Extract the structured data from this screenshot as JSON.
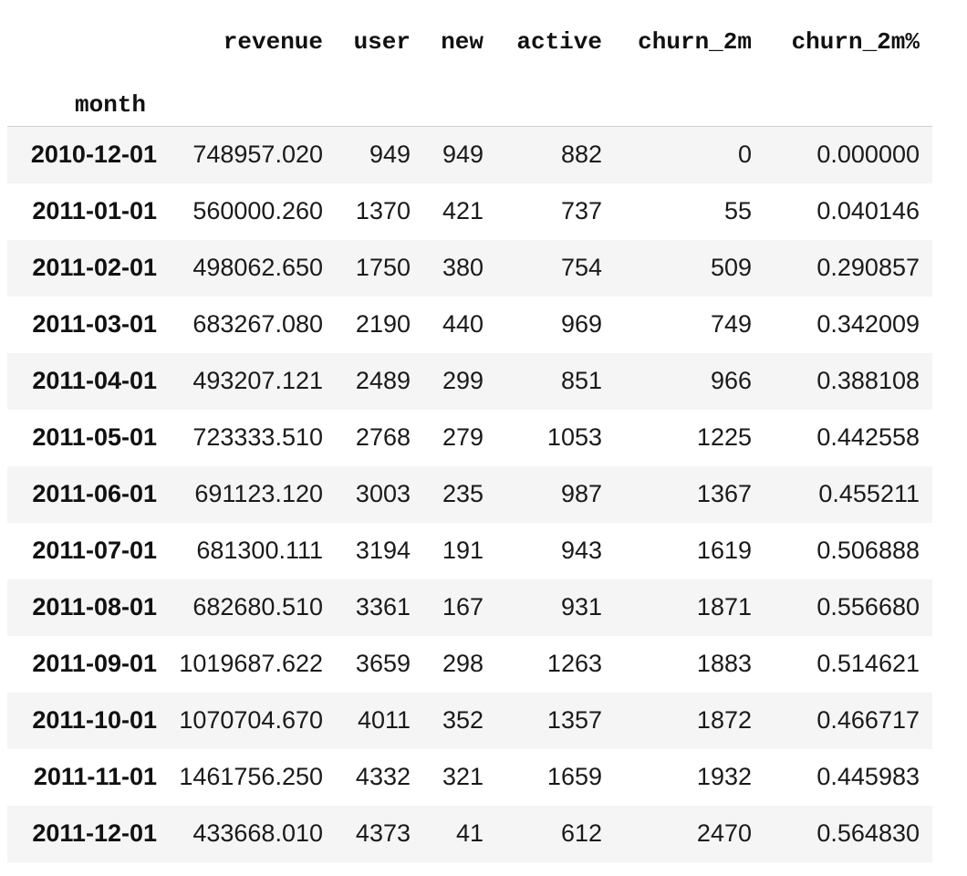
{
  "table": {
    "index_name": "month",
    "columns": [
      "revenue",
      "user",
      "new",
      "active",
      "churn_2m",
      "churn_2m%"
    ],
    "rows": [
      {
        "month": "2010-12-01",
        "cells": [
          "748957.020",
          "949",
          "949",
          "882",
          "0",
          "0.000000"
        ]
      },
      {
        "month": "2011-01-01",
        "cells": [
          "560000.260",
          "1370",
          "421",
          "737",
          "55",
          "0.040146"
        ]
      },
      {
        "month": "2011-02-01",
        "cells": [
          "498062.650",
          "1750",
          "380",
          "754",
          "509",
          "0.290857"
        ]
      },
      {
        "month": "2011-03-01",
        "cells": [
          "683267.080",
          "2190",
          "440",
          "969",
          "749",
          "0.342009"
        ]
      },
      {
        "month": "2011-04-01",
        "cells": [
          "493207.121",
          "2489",
          "299",
          "851",
          "966",
          "0.388108"
        ]
      },
      {
        "month": "2011-05-01",
        "cells": [
          "723333.510",
          "2768",
          "279",
          "1053",
          "1225",
          "0.442558"
        ]
      },
      {
        "month": "2011-06-01",
        "cells": [
          "691123.120",
          "3003",
          "235",
          "987",
          "1367",
          "0.455211"
        ]
      },
      {
        "month": "2011-07-01",
        "cells": [
          "681300.111",
          "3194",
          "191",
          "943",
          "1619",
          "0.506888"
        ]
      },
      {
        "month": "2011-08-01",
        "cells": [
          "682680.510",
          "3361",
          "167",
          "931",
          "1871",
          "0.556680"
        ]
      },
      {
        "month": "2011-09-01",
        "cells": [
          "1019687.622",
          "3659",
          "298",
          "1263",
          "1883",
          "0.514621"
        ]
      },
      {
        "month": "2011-10-01",
        "cells": [
          "1070704.670",
          "4011",
          "352",
          "1357",
          "1872",
          "0.466717"
        ]
      },
      {
        "month": "2011-11-01",
        "cells": [
          "1461756.250",
          "4332",
          "321",
          "1659",
          "1932",
          "0.445983"
        ]
      },
      {
        "month": "2011-12-01",
        "cells": [
          "433668.010",
          "4373",
          "41",
          "612",
          "2470",
          "0.564830"
        ]
      }
    ]
  }
}
